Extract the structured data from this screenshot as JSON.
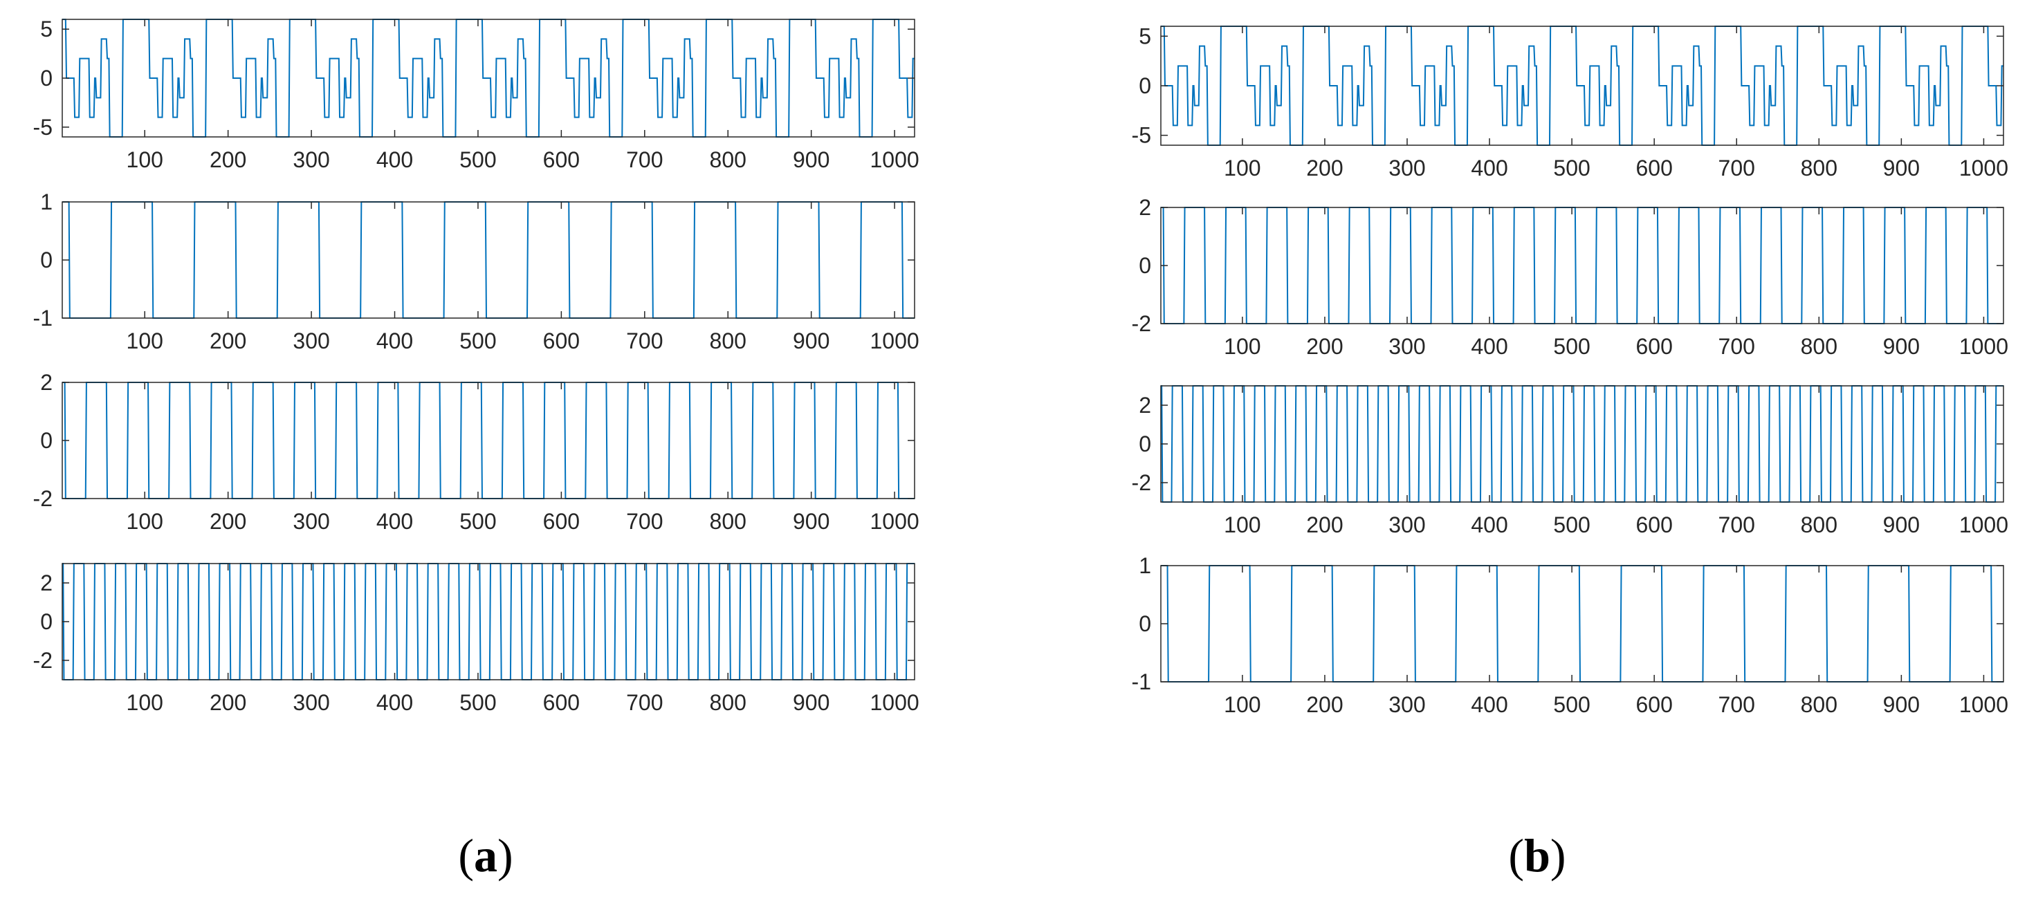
{
  "colors": {
    "line": "#0072BD",
    "axes": "#262626",
    "background": "#ffffff"
  },
  "captions": [
    {
      "open": "(",
      "letter": "a",
      "close": ")"
    },
    {
      "open": "(",
      "letter": "b",
      "close": ")"
    }
  ],
  "panels": [
    {
      "id": "a",
      "chart_data": [
        {
          "type": "line",
          "series": [
            {
              "kind": "composite",
              "period": 100,
              "amplitude": 6
            }
          ],
          "xlim": [
            1,
            1024
          ],
          "ylim": [
            -6,
            6
          ],
          "xticks": [
            100,
            200,
            300,
            400,
            500,
            600,
            700,
            800,
            900,
            1000
          ],
          "yticks": [
            -5,
            0,
            5
          ],
          "xticklabels": [
            "100",
            "200",
            "300",
            "400",
            "500",
            "600",
            "700",
            "800",
            "900",
            "1000"
          ],
          "yticklabels": [
            "-5",
            "0",
            "5"
          ]
        },
        {
          "type": "line",
          "series": [
            {
              "kind": "square",
              "amplitude": 1,
              "half_period": 50,
              "phase": 40
            }
          ],
          "xlim": [
            1,
            1024
          ],
          "ylim": [
            -1,
            1
          ],
          "xticks": [
            100,
            200,
            300,
            400,
            500,
            600,
            700,
            800,
            900,
            1000
          ],
          "yticks": [
            -1,
            0,
            1
          ],
          "xticklabels": [
            "100",
            "200",
            "300",
            "400",
            "500",
            "600",
            "700",
            "800",
            "900",
            "1000"
          ],
          "yticklabels": [
            "-1",
            "0",
            "1"
          ]
        },
        {
          "type": "line",
          "series": [
            {
              "kind": "square",
              "amplitude": 2,
              "half_period": 25,
              "phase": 20
            }
          ],
          "xlim": [
            1,
            1024
          ],
          "ylim": [
            -2,
            2
          ],
          "xticks": [
            100,
            200,
            300,
            400,
            500,
            600,
            700,
            800,
            900,
            1000
          ],
          "yticks": [
            -2,
            0,
            2
          ],
          "xticklabels": [
            "100",
            "200",
            "300",
            "400",
            "500",
            "600",
            "700",
            "800",
            "900",
            "1000"
          ],
          "yticklabels": [
            "-2",
            "0",
            "2"
          ]
        },
        {
          "type": "line",
          "series": [
            {
              "kind": "square",
              "amplitude": 3,
              "half_period": 12.5,
              "phase": 10
            }
          ],
          "xlim": [
            1,
            1024
          ],
          "ylim": [
            -3,
            3
          ],
          "xticks": [
            100,
            200,
            300,
            400,
            500,
            600,
            700,
            800,
            900,
            1000
          ],
          "yticks": [
            -2,
            0,
            2
          ],
          "xticklabels": [
            "100",
            "200",
            "300",
            "400",
            "500",
            "600",
            "700",
            "800",
            "900",
            "1000"
          ],
          "yticklabels": [
            "-2",
            "0",
            "2"
          ]
        }
      ]
    },
    {
      "id": "b",
      "chart_data": [
        {
          "type": "line",
          "series": [
            {
              "kind": "composite",
              "period": 100,
              "amplitude": 6
            }
          ],
          "xlim": [
            1,
            1024
          ],
          "ylim": [
            -6,
            6
          ],
          "xticks": [
            100,
            200,
            300,
            400,
            500,
            600,
            700,
            800,
            900,
            1000
          ],
          "yticks": [
            -5,
            0,
            5
          ],
          "xticklabels": [
            "100",
            "200",
            "300",
            "400",
            "500",
            "600",
            "700",
            "800",
            "900",
            "1000"
          ],
          "yticklabels": [
            "-5",
            "0",
            "5"
          ]
        },
        {
          "type": "line",
          "series": [
            {
              "kind": "square",
              "amplitude": 2,
              "half_period": 25,
              "phase": 20
            }
          ],
          "xlim": [
            1,
            1024
          ],
          "ylim": [
            -2,
            2
          ],
          "xticks": [
            100,
            200,
            300,
            400,
            500,
            600,
            700,
            800,
            900,
            1000
          ],
          "yticks": [
            -2,
            0,
            2
          ],
          "xticklabels": [
            "100",
            "200",
            "300",
            "400",
            "500",
            "600",
            "700",
            "800",
            "900",
            "1000"
          ],
          "yticklabels": [
            "-2",
            "0",
            "2"
          ]
        },
        {
          "type": "line",
          "series": [
            {
              "kind": "square",
              "amplitude": 3,
              "half_period": 12.5,
              "phase": 10
            }
          ],
          "xlim": [
            1,
            1024
          ],
          "ylim": [
            -3,
            3
          ],
          "xticks": [
            100,
            200,
            300,
            400,
            500,
            600,
            700,
            800,
            900,
            1000
          ],
          "yticks": [
            -2,
            0,
            2
          ],
          "xticklabels": [
            "100",
            "200",
            "300",
            "400",
            "500",
            "600",
            "700",
            "800",
            "900",
            "1000"
          ],
          "yticklabels": [
            "-2",
            "0",
            "2"
          ]
        },
        {
          "type": "line",
          "series": [
            {
              "kind": "square",
              "amplitude": 1,
              "half_period": 50,
              "phase": 40
            }
          ],
          "xlim": [
            1,
            1024
          ],
          "ylim": [
            -1,
            1
          ],
          "xticks": [
            100,
            200,
            300,
            400,
            500,
            600,
            700,
            800,
            900,
            1000
          ],
          "yticks": [
            -1,
            0,
            1
          ],
          "xticklabels": [
            "100",
            "200",
            "300",
            "400",
            "500",
            "600",
            "700",
            "800",
            "900",
            "1000"
          ],
          "yticklabels": [
            "-1",
            "0",
            "1"
          ]
        }
      ]
    }
  ]
}
